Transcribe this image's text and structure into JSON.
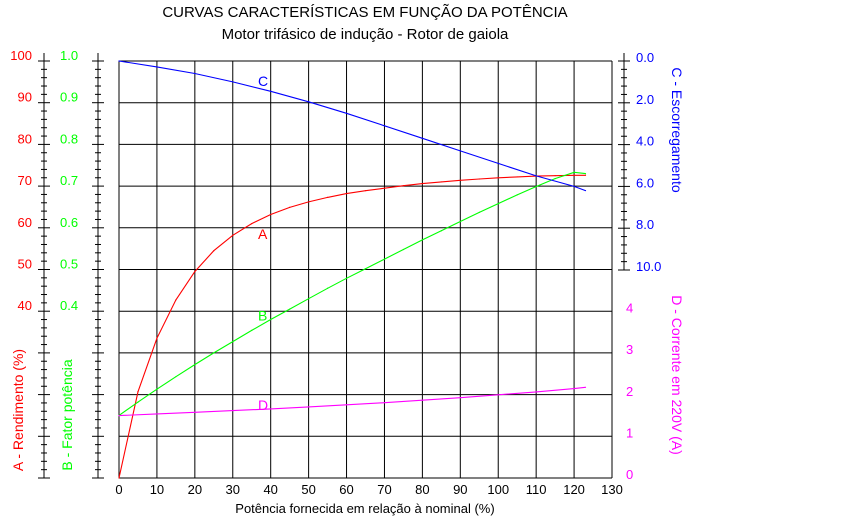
{
  "title": "CURVAS CARACTERÍSTICAS EM FUNÇÃO DA POTÊNCIA",
  "subtitle": "Motor trifásico de indução - Rotor de gaiola",
  "colors": {
    "A": "#ff0000",
    "B": "#00ff00",
    "C": "#0000ff",
    "D": "#ff00ff",
    "axis": "#000000"
  },
  "chart_data": {
    "type": "line",
    "title": "CURVAS CARACTERÍSTICAS EM FUNÇÃO DA POTÊNCIA",
    "subtitle": "Motor trifásico de indução - Rotor de gaiola",
    "xlabel": "Potência fornecida em relação à nominal (%)",
    "xlim": [
      0,
      130
    ],
    "xticks": [
      "0",
      "10",
      "20",
      "30",
      "40",
      "50",
      "60",
      "70",
      "80",
      "90",
      "100",
      "110",
      "120",
      "130"
    ],
    "grid": true,
    "axes": {
      "A": {
        "label": "A - Rendimento (%)",
        "ticks": [
          "100",
          "90",
          "80",
          "70",
          "60",
          "50",
          "40"
        ],
        "range": [
          0,
          100
        ]
      },
      "B": {
        "label": "B - Fator potência",
        "ticks": [
          "1.0",
          "0.9",
          "0.8",
          "0.7",
          "0.6",
          "0.5",
          "0.4"
        ],
        "range": [
          0,
          1.0
        ]
      },
      "C": {
        "label": "C - Escorregamento",
        "ticks": [
          "0.0",
          "2.0",
          "4.0",
          "6.0",
          "8.0",
          "10.0"
        ],
        "range": [
          0,
          10
        ],
        "inverted": true
      },
      "D": {
        "label": "D - Corrente em  220V (A)",
        "ticks": [
          "4",
          "3",
          "2",
          "1",
          "0"
        ],
        "range": [
          0,
          5
        ]
      }
    },
    "series": [
      {
        "name": "A",
        "axis": "A",
        "x": [
          0,
          5,
          10,
          15,
          20,
          25,
          30,
          35,
          40,
          45,
          50,
          55,
          60,
          65,
          70,
          75,
          80,
          85,
          90,
          95,
          100,
          105,
          110,
          115,
          120,
          123
        ],
        "y": [
          0,
          20.7,
          33.5,
          42.7,
          49.5,
          54.5,
          58.2,
          61.0,
          63.2,
          64.9,
          66.2,
          67.3,
          68.2,
          68.9,
          69.5,
          70.1,
          70.6,
          71.0,
          71.4,
          71.7,
          72.0,
          72.2,
          72.4,
          72.5,
          72.6,
          72.6
        ]
      },
      {
        "name": "B",
        "axis": "B",
        "x": [
          0,
          5,
          10,
          15,
          20,
          25,
          30,
          35,
          40,
          45,
          50,
          55,
          60,
          65,
          70,
          75,
          80,
          85,
          90,
          95,
          100,
          105,
          110,
          115,
          120,
          123
        ],
        "y": [
          0.15,
          0.182,
          0.213,
          0.243,
          0.272,
          0.3,
          0.327,
          0.354,
          0.38,
          0.405,
          0.43,
          0.455,
          0.479,
          0.502,
          0.525,
          0.548,
          0.571,
          0.593,
          0.615,
          0.637,
          0.658,
          0.679,
          0.699,
          0.718,
          0.733,
          0.73
        ]
      },
      {
        "name": "C",
        "axis": "C",
        "x": [
          0,
          10,
          20,
          30,
          40,
          50,
          60,
          70,
          80,
          90,
          100,
          110,
          120,
          123
        ],
        "y": [
          0.0,
          0.28,
          0.6,
          1.0,
          1.45,
          1.95,
          2.5,
          3.1,
          3.7,
          4.3,
          4.9,
          5.5,
          6.0,
          6.2
        ]
      },
      {
        "name": "D",
        "axis": "D",
        "x": [
          0,
          10,
          20,
          30,
          40,
          50,
          60,
          70,
          80,
          90,
          100,
          110,
          120,
          123
        ],
        "y": [
          1.5,
          1.54,
          1.58,
          1.62,
          1.66,
          1.71,
          1.76,
          1.81,
          1.87,
          1.93,
          2.0,
          2.07,
          2.15,
          2.18
        ]
      }
    ],
    "series_labels": [
      {
        "text": "A",
        "series": "A",
        "x": 34,
        "y": 58.5
      },
      {
        "text": "B",
        "series": "B",
        "x": 34,
        "y": 0.39
      },
      {
        "text": "C",
        "series": "C",
        "x": 34,
        "y": 0.95
      },
      {
        "text": "D",
        "series": "D",
        "x": 34,
        "y": 1.75
      }
    ]
  }
}
